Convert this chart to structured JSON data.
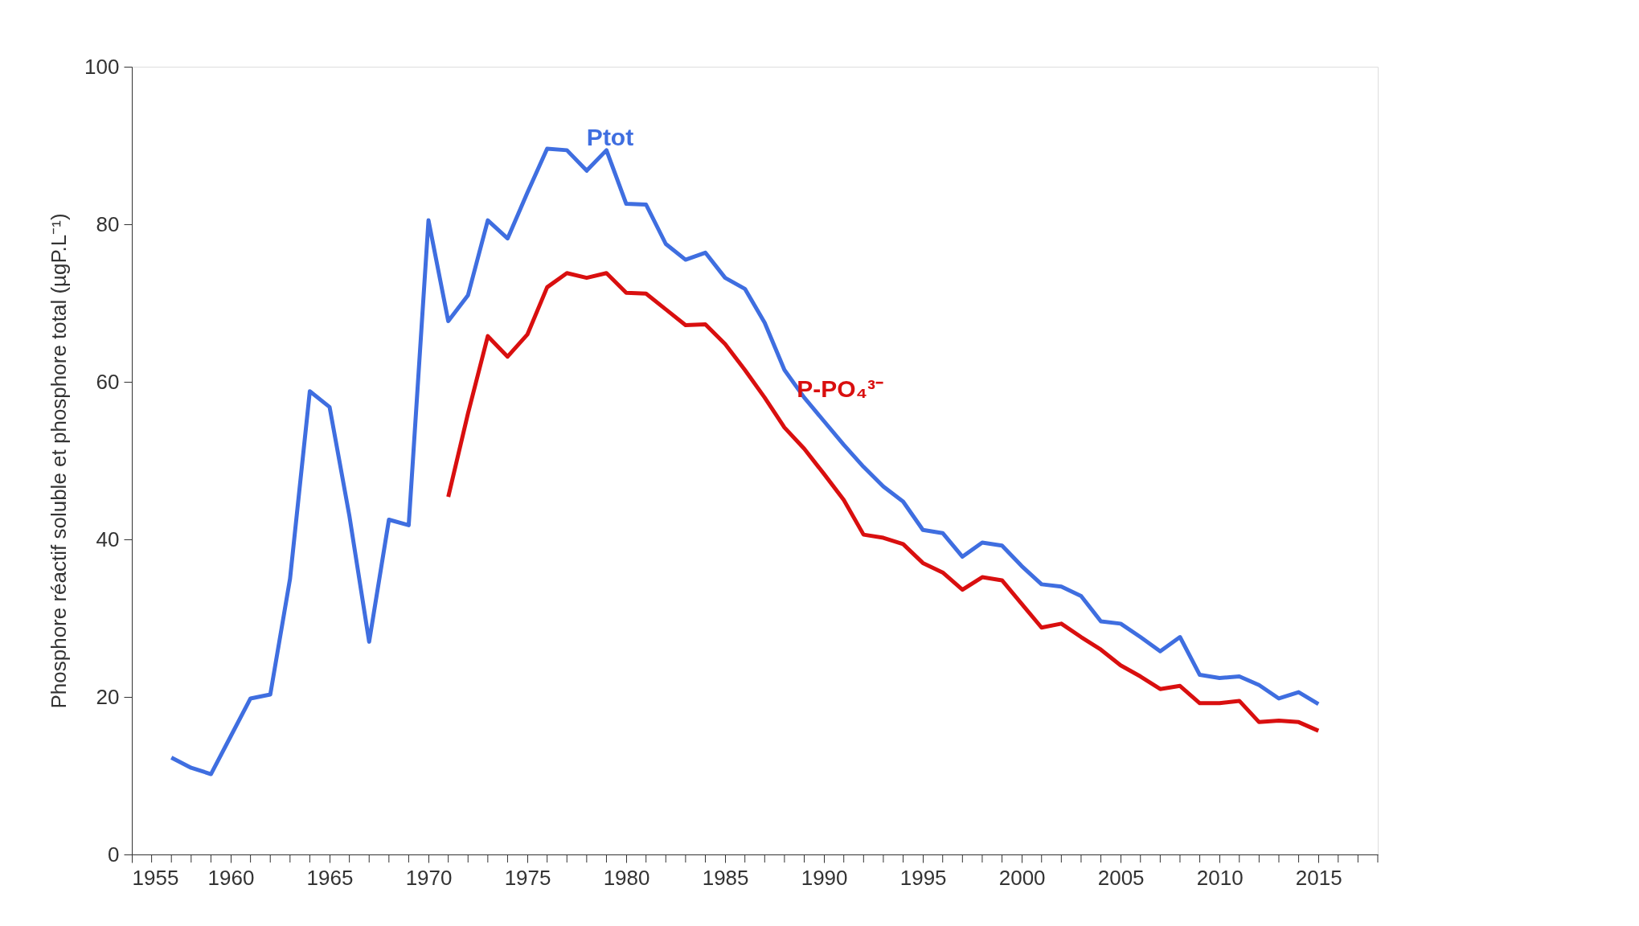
{
  "chart_data": {
    "type": "line",
    "ylabel": "Phosphore réactif soluble et phosphore total (µgP.L⁻¹)",
    "x": [
      1957,
      1958,
      1959,
      1960,
      1961,
      1962,
      1963,
      1964,
      1965,
      1966,
      1967,
      1968,
      1969,
      1970,
      1971,
      1972,
      1973,
      1974,
      1975,
      1976,
      1977,
      1978,
      1979,
      1980,
      1981,
      1982,
      1983,
      1984,
      1985,
      1986,
      1987,
      1988,
      1989,
      1990,
      1991,
      1992,
      1993,
      1994,
      1995,
      1996,
      1997,
      1998,
      1999,
      2000,
      2001,
      2002,
      2003,
      2004,
      2005,
      2006,
      2007,
      2008,
      2009,
      2010,
      2011,
      2012,
      2013,
      2014,
      2015
    ],
    "series": [
      {
        "name": "Ptot",
        "color": "#3f6ee0",
        "values": [
          12.3,
          11,
          10.2,
          15,
          19.8,
          20.3,
          35,
          58.8,
          56.8,
          43,
          27,
          42.5,
          41.8,
          80.5,
          67.7,
          71,
          80.5,
          78.2,
          84,
          89.6,
          89.4,
          86.8,
          89.4,
          82.6,
          82.5,
          77.5,
          75.5,
          76.4,
          73.2,
          71.8,
          67.5,
          61.5,
          58,
          55,
          52,
          49.2,
          46.7,
          44.8,
          41.2,
          40.8,
          37.8,
          39.6,
          39.2,
          36.6,
          34.3,
          34,
          32.8,
          29.6,
          29.3,
          27.6,
          25.8,
          27.6,
          22.8,
          22.4,
          22.6,
          21.5,
          19.8,
          20.6,
          19.1
        ]
      },
      {
        "name": "P-PO₄³⁻",
        "color": "#d90f0f",
        "values": [
          null,
          null,
          null,
          null,
          null,
          null,
          null,
          null,
          null,
          null,
          null,
          null,
          null,
          null,
          45.4,
          56,
          65.8,
          63.2,
          66,
          72,
          73.8,
          73.2,
          73.8,
          71.3,
          71.2,
          69.2,
          67.2,
          67.3,
          64.8,
          61.5,
          58,
          54.2,
          51.5,
          48.3,
          45,
          40.6,
          40.2,
          39.4,
          37,
          35.8,
          33.6,
          35.2,
          34.8,
          31.8,
          28.8,
          29.3,
          27.6,
          26,
          24,
          22.6,
          21,
          21.4,
          19.2,
          19.2,
          19.5,
          16.8,
          17,
          16.8,
          15.7
        ]
      }
    ],
    "xlim": [
      1955,
      2018
    ],
    "xticks": [
      1955,
      {
        "value": 1956,
        "label": null
      },
      {
        "value": 1957,
        "label": null
      },
      {
        "value": 1958,
        "label": null
      },
      {
        "value": 1959,
        "label": null
      },
      1960,
      {
        "value": 1961,
        "label": null
      },
      {
        "value": 1962,
        "label": null
      },
      {
        "value": 1963,
        "label": null
      },
      {
        "value": 1964,
        "label": null
      },
      1965,
      {
        "value": 1966,
        "label": null
      },
      {
        "value": 1967,
        "label": null
      },
      {
        "value": 1968,
        "label": null
      },
      {
        "value": 1969,
        "label": null
      },
      1970,
      {
        "value": 1971,
        "label": null
      },
      {
        "value": 1972,
        "label": null
      },
      {
        "value": 1973,
        "label": null
      },
      {
        "value": 1974,
        "label": null
      },
      1975,
      {
        "value": 1976,
        "label": null
      },
      {
        "value": 1977,
        "label": null
      },
      {
        "value": 1978,
        "label": null
      },
      {
        "value": 1979,
        "label": null
      },
      1980,
      {
        "value": 1981,
        "label": null
      },
      {
        "value": 1982,
        "label": null
      },
      {
        "value": 1983,
        "label": null
      },
      {
        "value": 1984,
        "label": null
      },
      1985,
      {
        "value": 1986,
        "label": null
      },
      {
        "value": 1987,
        "label": null
      },
      {
        "value": 1988,
        "label": null
      },
      {
        "value": 1989,
        "label": null
      },
      1990,
      {
        "value": 1991,
        "label": null
      },
      {
        "value": 1992,
        "label": null
      },
      {
        "value": 1993,
        "label": null
      },
      {
        "value": 1994,
        "label": null
      },
      1995,
      {
        "value": 1996,
        "label": null
      },
      {
        "value": 1997,
        "label": null
      },
      {
        "value": 1998,
        "label": null
      },
      {
        "value": 1999,
        "label": null
      },
      2000,
      {
        "value": 2001,
        "label": null
      },
      {
        "value": 2002,
        "label": null
      },
      {
        "value": 2003,
        "label": null
      },
      {
        "value": 2004,
        "label": null
      },
      2005,
      {
        "value": 2006,
        "label": null
      },
      {
        "value": 2007,
        "label": null
      },
      {
        "value": 2008,
        "label": null
      },
      {
        "value": 2009,
        "label": null
      },
      2010,
      {
        "value": 2011,
        "label": null
      },
      {
        "value": 2012,
        "label": null
      },
      {
        "value": 2013,
        "label": null
      },
      {
        "value": 2014,
        "label": null
      },
      2015,
      {
        "value": 2016,
        "label": null
      },
      {
        "value": 2017,
        "label": null
      },
      {
        "value": 2018,
        "label": null
      }
    ],
    "ylim": [
      0,
      100
    ],
    "yticks": [
      0,
      20,
      40,
      60,
      80,
      100
    ],
    "grid": false,
    "marker": "none",
    "line_style": "solid"
  }
}
